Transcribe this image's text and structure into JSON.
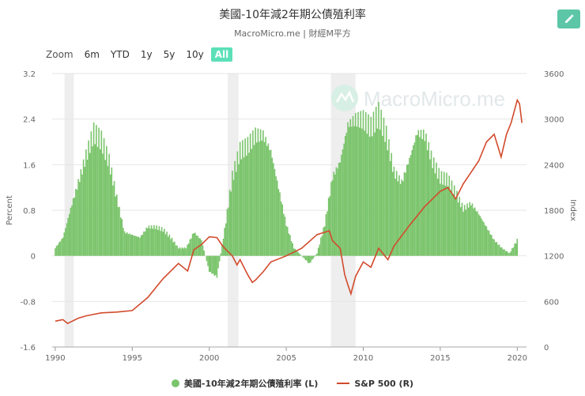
{
  "header": {
    "title": "美國-10年減2年期公債殖利率",
    "subtitle": "MacroMicro.me | 財經M平方"
  },
  "toolbar": {
    "edit_icon": "pencil-icon",
    "zoom_label": "Zoom",
    "zoom_options": [
      "6m",
      "YTD",
      "1y",
      "5y",
      "10y",
      "All"
    ],
    "active_zoom": "All"
  },
  "watermark": "MacroMicro.me",
  "chart_data": {
    "type": "bar+line",
    "title": "美國-10年減2年期公債殖利率",
    "x_ticks": [
      "1990",
      "1995",
      "2000",
      "2005",
      "2010",
      "2015",
      "2020"
    ],
    "xlim": [
      1989.8,
      2020.6
    ],
    "left_axis": {
      "label": "Percent",
      "ylim": [
        -1.6,
        3.2
      ],
      "ticks": [
        "3.2",
        "2.4",
        "1.6",
        "0.8",
        "0",
        "-0.8",
        "-1.6"
      ]
    },
    "right_axis": {
      "label": "Index",
      "ylim": [
        0,
        3600
      ],
      "ticks": [
        "3600",
        "3000",
        "2400",
        "1800",
        "1200",
        "600",
        "0"
      ]
    },
    "recessions": [
      [
        1990.6,
        1991.2
      ],
      [
        2001.2,
        2001.9
      ],
      [
        2007.9,
        2009.5
      ]
    ],
    "series": [
      {
        "name": "美國-10年減2年期公債殖利率 (L)",
        "axis": "left",
        "type": "bar",
        "color": "#7ac46b",
        "x": [
          1990.0,
          1990.5,
          1991.0,
          1991.5,
          1992.0,
          1992.5,
          1993.0,
          1993.5,
          1994.0,
          1994.5,
          1995.0,
          1995.5,
          1996.0,
          1996.5,
          1997.0,
          1997.5,
          1998.0,
          1998.5,
          1999.0,
          1999.5,
          2000.0,
          2000.5,
          2001.0,
          2001.5,
          2002.0,
          2002.5,
          2003.0,
          2003.5,
          2004.0,
          2004.5,
          2005.0,
          2005.5,
          2006.0,
          2006.5,
          2007.0,
          2007.5,
          2008.0,
          2008.5,
          2009.0,
          2009.5,
          2010.0,
          2010.5,
          2011.0,
          2011.5,
          2012.0,
          2012.5,
          2013.0,
          2013.5,
          2014.0,
          2014.5,
          2015.0,
          2015.5,
          2016.0,
          2016.5,
          2017.0,
          2017.5,
          2018.0,
          2018.5,
          2019.0,
          2019.5,
          2020.0
        ],
        "values": [
          0.15,
          0.35,
          0.9,
          1.4,
          1.9,
          2.35,
          2.2,
          1.8,
          1.1,
          0.45,
          0.4,
          0.35,
          0.55,
          0.55,
          0.5,
          0.35,
          0.15,
          0.15,
          0.45,
          0.3,
          -0.3,
          -0.4,
          0.5,
          1.5,
          2.0,
          2.1,
          2.3,
          2.3,
          2.0,
          1.3,
          0.6,
          0.15,
          0.0,
          -0.15,
          0.05,
          0.6,
          1.5,
          1.8,
          2.5,
          2.6,
          2.6,
          2.45,
          2.7,
          2.3,
          1.6,
          1.4,
          1.85,
          2.35,
          2.3,
          1.8,
          1.5,
          1.45,
          1.2,
          0.9,
          1.0,
          0.8,
          0.55,
          0.3,
          0.15,
          0.05,
          0.3
        ]
      },
      {
        "name": "S&P 500 (R)",
        "axis": "right",
        "type": "line",
        "color": "#d24a2c",
        "x": [
          1990.0,
          1990.5,
          1990.8,
          1991.0,
          1991.5,
          1992.0,
          1993.0,
          1994.0,
          1995.0,
          1996.0,
          1997.0,
          1998.0,
          1998.6,
          1999.0,
          1999.5,
          2000.0,
          2000.5,
          2000.8,
          2001.0,
          2001.5,
          2001.8,
          2002.0,
          2002.5,
          2002.8,
          2003.0,
          2003.5,
          2004.0,
          2005.0,
          2006.0,
          2007.0,
          2007.8,
          2008.0,
          2008.5,
          2008.8,
          2009.0,
          2009.2,
          2009.5,
          2010.0,
          2010.5,
          2011.0,
          2011.6,
          2012.0,
          2013.0,
          2014.0,
          2014.5,
          2015.0,
          2015.5,
          2016.0,
          2016.5,
          2017.0,
          2017.5,
          2018.0,
          2018.5,
          2018.95,
          2019.3,
          2019.6,
          2020.0,
          2020.15,
          2020.3
        ],
        "values": [
          340,
          360,
          310,
          330,
          380,
          410,
          450,
          460,
          480,
          650,
          900,
          1100,
          1000,
          1280,
          1350,
          1450,
          1440,
          1350,
          1300,
          1200,
          1080,
          1150,
          950,
          850,
          880,
          990,
          1120,
          1200,
          1300,
          1480,
          1530,
          1400,
          1300,
          950,
          820,
          700,
          930,
          1120,
          1050,
          1300,
          1150,
          1330,
          1600,
          1850,
          1950,
          2050,
          2100,
          1950,
          2150,
          2300,
          2450,
          2700,
          2800,
          2500,
          2800,
          2950,
          3250,
          3200,
          2950
        ]
      }
    ]
  }
}
